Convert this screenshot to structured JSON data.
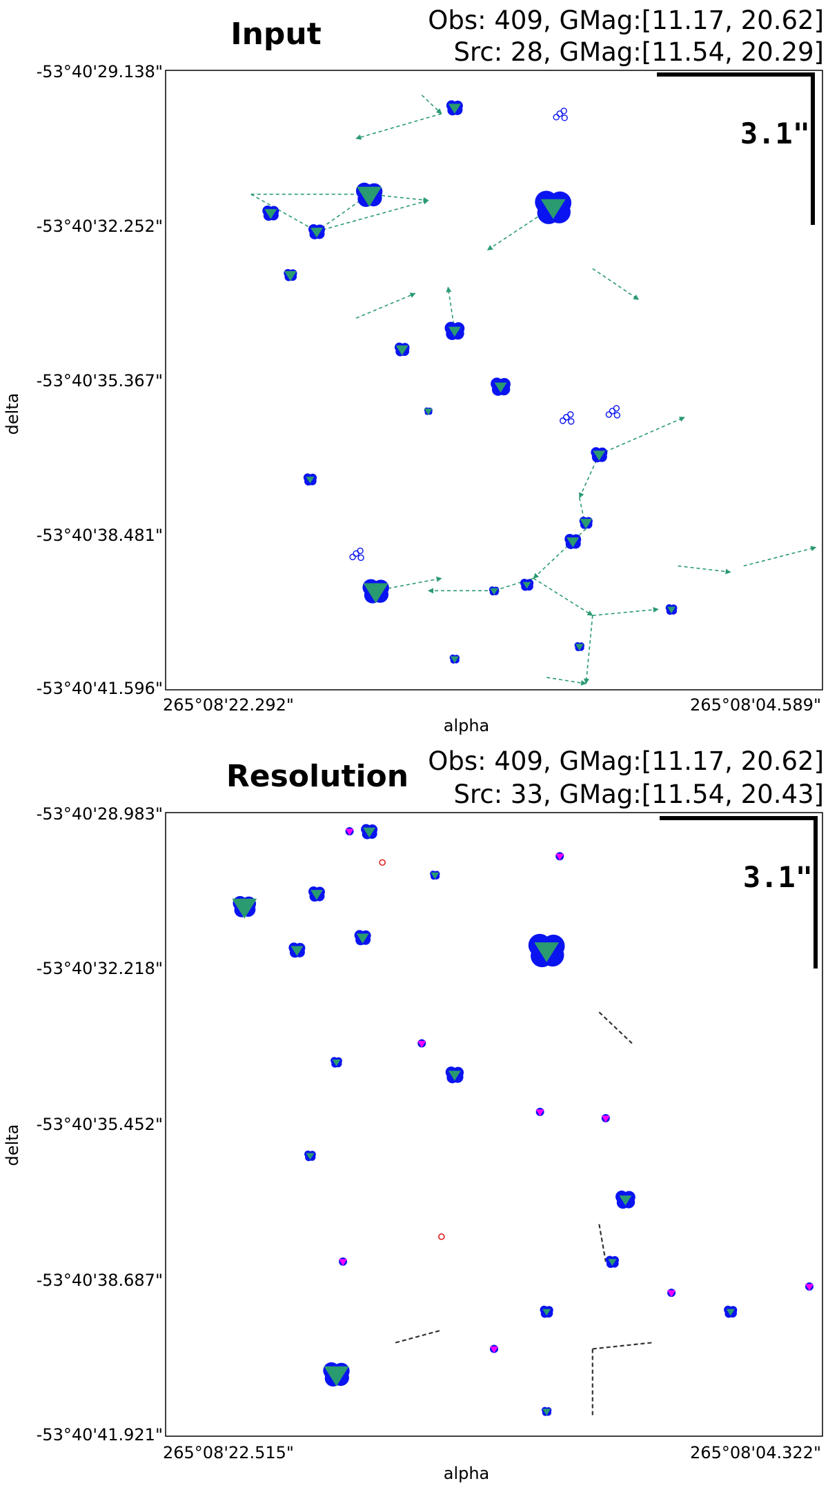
{
  "chart_data": [
    {
      "type": "scatter",
      "title": "Input",
      "obs_info": "Obs: 409, GMag:[11.17, 20.62]",
      "src_info": "Src: 28, GMag:[11.54, 20.29]",
      "xlabel": "alpha",
      "ylabel": "delta",
      "x_ticks": [
        "265°08'22.292\"",
        "265°08'04.589\""
      ],
      "y_ticks": [
        "-53°40'29.138\"",
        "-53°40'32.252\"",
        "-53°40'35.367\"",
        "-53°40'38.481\"",
        "-53°40'41.596\""
      ],
      "scale_label": "3.1\"",
      "colors": {
        "obs": "#0a14f0",
        "src": "#2a9a70",
        "link": "#2a9a70"
      },
      "obs_groups": [
        {
          "x": 0.31,
          "y": 0.2,
          "r": 16,
          "src": "big"
        },
        {
          "x": 0.59,
          "y": 0.22,
          "r": 22,
          "src": "big"
        },
        {
          "x": 0.23,
          "y": 0.26,
          "r": 10,
          "src": "mid"
        },
        {
          "x": 0.16,
          "y": 0.23,
          "r": 10,
          "src": "mid"
        },
        {
          "x": 0.44,
          "y": 0.06,
          "r": 10,
          "src": "mid"
        },
        {
          "x": 0.44,
          "y": 0.42,
          "r": 12,
          "src": "mid"
        },
        {
          "x": 0.51,
          "y": 0.51,
          "r": 12,
          "src": "mid"
        },
        {
          "x": 0.32,
          "y": 0.84,
          "r": 16,
          "src": "big"
        },
        {
          "x": 0.55,
          "y": 0.83,
          "r": 8,
          "src": "small"
        },
        {
          "x": 0.5,
          "y": 0.84,
          "r": 6,
          "src": "small"
        },
        {
          "x": 0.36,
          "y": 0.45,
          "r": 9,
          "src": "mid"
        },
        {
          "x": 0.22,
          "y": 0.66,
          "r": 8,
          "src": "small"
        },
        {
          "x": 0.19,
          "y": 0.33,
          "r": 8,
          "src": "mid"
        },
        {
          "x": 0.4,
          "y": 0.55,
          "r": 5,
          "src": "small"
        },
        {
          "x": 0.62,
          "y": 0.76,
          "r": 10,
          "src": "mid"
        },
        {
          "x": 0.66,
          "y": 0.62,
          "r": 10,
          "src": "mid"
        },
        {
          "x": 0.64,
          "y": 0.73,
          "r": 8,
          "src": "mid"
        },
        {
          "x": 0.77,
          "y": 0.87,
          "r": 7,
          "src": "small"
        },
        {
          "x": 0.63,
          "y": 0.93,
          "r": 6,
          "src": "small"
        },
        {
          "x": 0.44,
          "y": 0.95,
          "r": 6,
          "src": "small"
        }
      ],
      "obs_open": [
        {
          "x": 0.6,
          "y": 0.07
        },
        {
          "x": 0.61,
          "y": 0.56
        },
        {
          "x": 0.68,
          "y": 0.55
        },
        {
          "x": 0.29,
          "y": 0.78
        }
      ],
      "links": [
        {
          "x1": 0.13,
          "y1": 0.2,
          "x2": 0.23,
          "y2": 0.26
        },
        {
          "x1": 0.13,
          "y1": 0.2,
          "x2": 0.31,
          "y2": 0.2
        },
        {
          "x1": 0.23,
          "y1": 0.26,
          "x2": 0.31,
          "y2": 0.2
        },
        {
          "x1": 0.23,
          "y1": 0.26,
          "x2": 0.4,
          "y2": 0.21
        },
        {
          "x1": 0.31,
          "y1": 0.2,
          "x2": 0.4,
          "y2": 0.21
        },
        {
          "x1": 0.59,
          "y1": 0.22,
          "x2": 0.49,
          "y2": 0.29
        },
        {
          "x1": 0.65,
          "y1": 0.32,
          "x2": 0.72,
          "y2": 0.37
        },
        {
          "x1": 0.44,
          "y1": 0.42,
          "x2": 0.43,
          "y2": 0.35
        },
        {
          "x1": 0.29,
          "y1": 0.4,
          "x2": 0.38,
          "y2": 0.36
        },
        {
          "x1": 0.66,
          "y1": 0.62,
          "x2": 0.79,
          "y2": 0.56
        },
        {
          "x1": 0.66,
          "y1": 0.62,
          "x2": 0.63,
          "y2": 0.69
        },
        {
          "x1": 0.63,
          "y1": 0.69,
          "x2": 0.64,
          "y2": 0.74
        },
        {
          "x1": 0.64,
          "y1": 0.74,
          "x2": 0.56,
          "y2": 0.82
        },
        {
          "x1": 0.56,
          "y1": 0.82,
          "x2": 0.5,
          "y2": 0.84
        },
        {
          "x1": 0.5,
          "y1": 0.84,
          "x2": 0.4,
          "y2": 0.84
        },
        {
          "x1": 0.32,
          "y1": 0.84,
          "x2": 0.42,
          "y2": 0.82
        },
        {
          "x1": 0.56,
          "y1": 0.82,
          "x2": 0.65,
          "y2": 0.88
        },
        {
          "x1": 0.65,
          "y1": 0.88,
          "x2": 0.75,
          "y2": 0.87
        },
        {
          "x1": 0.65,
          "y1": 0.88,
          "x2": 0.64,
          "y2": 0.99
        },
        {
          "x1": 0.58,
          "y1": 0.98,
          "x2": 0.64,
          "y2": 0.99
        },
        {
          "x1": 0.78,
          "y1": 0.8,
          "x2": 0.86,
          "y2": 0.81
        },
        {
          "x1": 0.88,
          "y1": 0.8,
          "x2": 0.99,
          "y2": 0.77
        },
        {
          "x1": 0.39,
          "y1": 0.04,
          "x2": 0.42,
          "y2": 0.07
        },
        {
          "x1": 0.42,
          "y1": 0.07,
          "x2": 0.29,
          "y2": 0.11
        }
      ]
    },
    {
      "type": "scatter",
      "title": "Resolution",
      "obs_info": "Obs: 409, GMag:[11.17, 20.62]",
      "src_info": "Src: 33, GMag:[11.54, 20.43]",
      "xlabel": "alpha",
      "ylabel": "delta",
      "x_ticks": [
        "265°08'22.515\"",
        "265°08'04.322\""
      ],
      "y_ticks": [
        "-53°40'28.983\"",
        "-53°40'32.218\"",
        "-53°40'35.452\"",
        "-53°40'38.687\"",
        "-53°40'41.921\""
      ],
      "scale_label": "3.1\"",
      "colors": {
        "obs": "#0a14f0",
        "src": "#2a9a70",
        "link": "#333333",
        "alt_src": "#ff00ff",
        "open": "#e01010"
      },
      "obs_groups": [
        {
          "x": 0.12,
          "y": 0.15,
          "r": 14,
          "src": "big"
        },
        {
          "x": 0.58,
          "y": 0.22,
          "r": 22,
          "src": "big"
        },
        {
          "x": 0.2,
          "y": 0.22,
          "r": 10,
          "src": "mid"
        },
        {
          "x": 0.23,
          "y": 0.13,
          "r": 10,
          "src": "mid"
        },
        {
          "x": 0.3,
          "y": 0.2,
          "r": 10,
          "src": "mid"
        },
        {
          "x": 0.31,
          "y": 0.03,
          "r": 10,
          "src": "mid"
        },
        {
          "x": 0.44,
          "y": 0.42,
          "r": 11,
          "src": "mid"
        },
        {
          "x": 0.7,
          "y": 0.62,
          "r": 12,
          "src": "mid"
        },
        {
          "x": 0.26,
          "y": 0.4,
          "r": 7,
          "src": "small"
        },
        {
          "x": 0.22,
          "y": 0.55,
          "r": 7,
          "src": "small"
        },
        {
          "x": 0.26,
          "y": 0.9,
          "r": 16,
          "src": "big"
        },
        {
          "x": 0.58,
          "y": 0.8,
          "r": 8,
          "src": "small"
        },
        {
          "x": 0.68,
          "y": 0.72,
          "r": 8,
          "src": "small"
        },
        {
          "x": 0.86,
          "y": 0.8,
          "r": 8,
          "src": "small"
        },
        {
          "x": 0.58,
          "y": 0.96,
          "r": 6,
          "src": "small"
        },
        {
          "x": 0.41,
          "y": 0.1,
          "r": 6,
          "src": "small"
        }
      ],
      "alt_groups": [
        {
          "x": 0.28,
          "y": 0.03
        },
        {
          "x": 0.6,
          "y": 0.07
        },
        {
          "x": 0.39,
          "y": 0.37
        },
        {
          "x": 0.57,
          "y": 0.48
        },
        {
          "x": 0.67,
          "y": 0.49
        },
        {
          "x": 0.27,
          "y": 0.72
        },
        {
          "x": 0.77,
          "y": 0.77
        },
        {
          "x": 0.98,
          "y": 0.76
        },
        {
          "x": 0.5,
          "y": 0.86
        }
      ],
      "open_points": [
        {
          "x": 0.33,
          "y": 0.08
        },
        {
          "x": 0.42,
          "y": 0.68
        }
      ],
      "links": [
        {
          "x1": 0.66,
          "y1": 0.32,
          "x2": 0.71,
          "y2": 0.37
        },
        {
          "x1": 0.66,
          "y1": 0.66,
          "x2": 0.67,
          "y2": 0.72
        },
        {
          "x1": 0.35,
          "y1": 0.85,
          "x2": 0.42,
          "y2": 0.83
        },
        {
          "x1": 0.65,
          "y1": 0.86,
          "x2": 0.74,
          "y2": 0.85
        },
        {
          "x1": 0.65,
          "y1": 0.86,
          "x2": 0.65,
          "y2": 0.97
        }
      ]
    }
  ]
}
